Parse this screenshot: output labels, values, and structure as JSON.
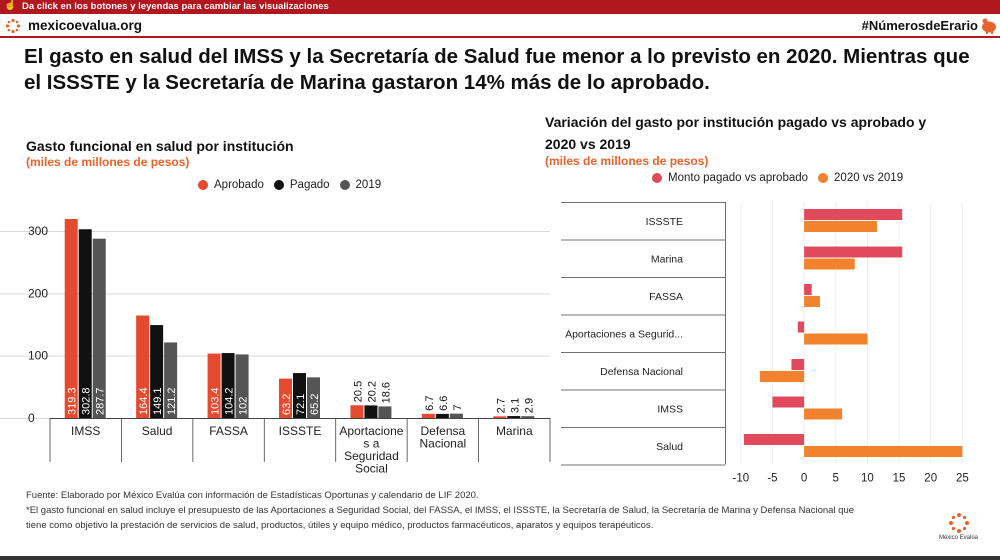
{
  "header": {
    "hint": "Da click en los botones y leyendas para cambiar las visualizaciones",
    "site": "mexicoevalua.org",
    "hashtag": "#NúmerosdeErario",
    "headline": "El gasto en salud del IMSS y la Secretaría de Salud fue menor a lo previsto en 2020. Mientras que el ISSSTE y la Secretaría de Marina gastaron 14% más de lo aprobado."
  },
  "colors": {
    "brand": "#b0171f",
    "orange": "#e8632b",
    "aprobado": "#e64a2e",
    "pagado": "#111111",
    "y2019": "#555555",
    "pink": "#e04a5c",
    "orange2": "#f2822e"
  },
  "chart1": {
    "title": "Gasto funcional en salud por institución",
    "subtitle": "(miles de millones de pesos)"
  },
  "chart2": {
    "title_line1": "Variación del gasto por institución pagado vs aprobado y",
    "title_line2": "2020 vs 2019",
    "subtitle": "(miles de millones de pesos)"
  },
  "chart_data": [
    {
      "type": "bar",
      "title": "Gasto funcional en salud por institución",
      "subtitle": "(miles de millones de pesos)",
      "categories": [
        "IMSS",
        "Salud",
        "FASSA",
        "ISSSTE",
        "Aportaciones a Seguridad Social",
        "Defensa Nacional",
        "Marina"
      ],
      "category_lines": [
        [
          "IMSS"
        ],
        [
          "Salud"
        ],
        [
          "FASSA"
        ],
        [
          "ISSSTE"
        ],
        [
          "Aportacione",
          "s a",
          "Seguridad",
          "Social"
        ],
        [
          "Defensa",
          "Nacional"
        ],
        [
          "Marina"
        ]
      ],
      "series": [
        {
          "name": "Aprobado",
          "color": "#e64a2e",
          "values": [
            319.3,
            164.4,
            103.4,
            63.2,
            20.5,
            6.7,
            2.7
          ],
          "labels": [
            "319.3",
            "164.4",
            "103.4",
            "63.2",
            "20.5",
            "6.7",
            "2.7"
          ]
        },
        {
          "name": "Pagado",
          "color": "#111111",
          "values": [
            302.8,
            149.1,
            104.2,
            72.1,
            20.2,
            6.6,
            3.1
          ],
          "labels": [
            "302.8",
            "149.1",
            "104.2",
            "72.1",
            "20.2",
            "6.6",
            "3.1"
          ]
        },
        {
          "name": "2019",
          "color": "#555555",
          "values": [
            287.7,
            121.2,
            102,
            65.2,
            18.6,
            7,
            2.9
          ],
          "labels": [
            "287.7",
            "121.2",
            "102",
            "65.2",
            "18.6",
            "7",
            "2.9"
          ]
        }
      ],
      "yticks": [
        0,
        100,
        200,
        300
      ],
      "ylim": [
        0,
        340
      ],
      "legend": "top-right"
    },
    {
      "type": "bar",
      "orientation": "horizontal",
      "title": "Variación del gasto por institución pagado vs aprobado y 2020 vs 2019",
      "subtitle": "(miles de millones de pesos)",
      "categories": [
        "ISSSTE",
        "Marina",
        "FASSA",
        "Aportaciones a Segurid...",
        "Defensa Nacional",
        "IMSS",
        "Salud"
      ],
      "series": [
        {
          "name": "Monto pagado vs aprobado",
          "color": "#e04a5c",
          "values": [
            15.5,
            15.5,
            1.2,
            -1.0,
            -2.0,
            -5.0,
            -9.5
          ]
        },
        {
          "name": "2020 vs 2019",
          "color": "#f2822e",
          "values": [
            11.5,
            8.0,
            2.5,
            10.0,
            -7.0,
            6.0,
            25.0
          ]
        }
      ],
      "xticks": [
        -10,
        -5,
        0,
        5,
        10,
        15,
        20,
        25
      ],
      "xlim": [
        -12.5,
        27
      ],
      "legend": "top"
    }
  ],
  "footer": {
    "source": "Fuente: Elaborado por México Evalúa con información de Estadísticas Oportunas y calendario de LIF 2020.",
    "note1": "*El gasto funcional en salud incluye el presupuesto de las Aportaciones a Seguridad Social, del FASSA, el IMSS, el ISSSTE, la Secretaría de Salud, la Secretaría de Marina y Defensa Nacional que",
    "note2": "tiene como objetivo la prestación de servicios de salud, productos, útiles y equipo médico, productos farmacéuticos, aparatos y equipos terapéuticos.",
    "logo_text": "México Evalúa"
  }
}
